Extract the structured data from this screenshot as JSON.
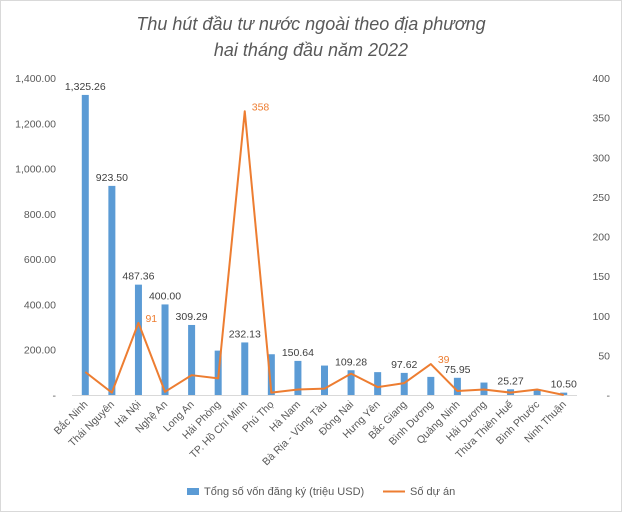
{
  "chart_data": {
    "type": "bar",
    "title_lines": [
      "Thu hút đầu tư nước ngoài theo địa phương",
      "hai tháng đầu năm 2022"
    ],
    "categories": [
      "Bắc Ninh",
      "Thái Nguyên",
      "Hà Nội",
      "Nghệ An",
      "Long An",
      "Hải Phòng",
      "TP. Hồ Chí Minh",
      "Phú Thọ",
      "Hà Nam",
      "Bà Rịa - Vũng Tàu",
      "Đồng Nai",
      "Hưng Yên",
      "Bắc Giang",
      "Bình Dương",
      "Quảng Ninh",
      "Hải Dương",
      "Thừa Thiên Huế",
      "Bình Phước",
      "Ninh Thuận"
    ],
    "series": [
      {
        "name": "Tổng số vốn đăng ký (triệu USD)",
        "type": "bar",
        "axis": "left",
        "color": "#5B9BD5",
        "values": [
          1325.26,
          923.5,
          487.36,
          400.0,
          309.29,
          196.0,
          232.13,
          180.0,
          150.64,
          130.0,
          109.28,
          101.0,
          97.62,
          80.0,
          75.95,
          55.0,
          25.27,
          20.0,
          10.5
        ],
        "labels": [
          "1,325.26",
          "923.50",
          "487.36",
          "400.00",
          "309.29",
          "",
          "232.13",
          "",
          "150.64",
          "",
          "109.28",
          "",
          "97.62",
          "",
          "75.95",
          "",
          "25.27",
          "",
          "10.50"
        ]
      },
      {
        "name": "Số dự án",
        "type": "line",
        "axis": "right",
        "color": "#ED7D31",
        "values": [
          29,
          3,
          91,
          4,
          25,
          21,
          358,
          3,
          7,
          8,
          27,
          10,
          15,
          39,
          5,
          7,
          3,
          7,
          0
        ],
        "labels": [
          "",
          "",
          "91",
          "",
          "",
          "",
          "358",
          "",
          "",
          "",
          "",
          "",
          "",
          "39",
          "",
          "",
          "",
          "",
          ""
        ]
      }
    ],
    "y_left": {
      "min": 0,
      "max": 1400,
      "ticks": [
        0,
        200,
        400,
        600,
        800,
        1000,
        1200,
        1400
      ],
      "tick_labels": [
        "-",
        "200.00",
        "400.00",
        "600.00",
        "800.00",
        "1,000.00",
        "1,200.00",
        "1,400.00"
      ]
    },
    "y_right": {
      "min": 0,
      "max": 400,
      "ticks": [
        0,
        50,
        100,
        150,
        200,
        250,
        300,
        350,
        400
      ],
      "tick_labels": [
        "-",
        "50",
        "100",
        "150",
        "200",
        "250",
        "300",
        "350",
        "400"
      ]
    },
    "legend_position": "bottom",
    "gridlines": false
  }
}
